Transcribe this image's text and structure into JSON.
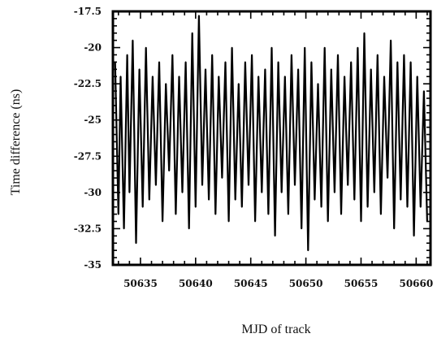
{
  "chart_data": {
    "type": "line",
    "title": "",
    "xlabel": "MJD of track",
    "ylabel": "Time difference (ns)",
    "xlim": [
      50632.5,
      50661.3
    ],
    "ylim": [
      -35,
      -17.5
    ],
    "x_ticks": [
      50635,
      50640,
      50645,
      50650,
      50655,
      50660
    ],
    "x_tick_labels": [
      "50635",
      "50640",
      "50645",
      "50650",
      "50655",
      "50660"
    ],
    "y_ticks": [
      -17.5,
      -20,
      -22.5,
      -25,
      -27.5,
      -30,
      -32.5,
      -35
    ],
    "y_tick_labels": [
      "-17.5",
      "-20",
      "-22.5",
      "-25",
      "-27.5",
      "-30",
      "-32.5",
      "-35"
    ],
    "grid": false,
    "series": [
      {
        "color": "#000000",
        "x": [
          50632.7,
          50633.0,
          50633.2,
          50633.5,
          50633.8,
          50634.0,
          50634.3,
          50634.6,
          50634.9,
          50635.2,
          50635.5,
          50635.8,
          50636.1,
          50636.4,
          50636.7,
          50637.0,
          50637.3,
          50637.6,
          50637.9,
          50638.2,
          50638.5,
          50638.8,
          50639.1,
          50639.4,
          50639.7,
          50640.0,
          50640.3,
          50640.6,
          50640.9,
          50641.2,
          50641.5,
          50641.8,
          50642.1,
          50642.4,
          50642.7,
          50643.0,
          50643.3,
          50643.6,
          50643.9,
          50644.2,
          50644.5,
          50644.8,
          50645.1,
          50645.4,
          50645.7,
          50646.0,
          50646.3,
          50646.6,
          50646.9,
          50647.2,
          50647.5,
          50647.8,
          50648.1,
          50648.4,
          50648.7,
          50649.0,
          50649.3,
          50649.6,
          50649.9,
          50650.2,
          50650.5,
          50650.8,
          50651.1,
          50651.4,
          50651.7,
          50652.0,
          50652.3,
          50652.6,
          50652.9,
          50653.2,
          50653.5,
          50653.8,
          50654.1,
          50654.4,
          50654.7,
          50655.0,
          50655.3,
          50655.6,
          50655.9,
          50656.2,
          50656.5,
          50656.8,
          50657.1,
          50657.4,
          50657.7,
          50658.0,
          50658.3,
          50658.6,
          50658.9,
          50659.2,
          50659.5,
          50659.8,
          50660.1,
          50660.4,
          50660.7,
          50661.0
        ],
        "values": [
          -21.0,
          -31.5,
          -22.0,
          -32.5,
          -20.5,
          -30.0,
          -19.5,
          -33.5,
          -21.5,
          -31.0,
          -20.0,
          -30.5,
          -22.0,
          -29.5,
          -21.0,
          -32.0,
          -22.5,
          -28.5,
          -20.5,
          -31.5,
          -22.0,
          -30.0,
          -21.0,
          -32.5,
          -19.0,
          -31.0,
          -17.8,
          -29.5,
          -21.5,
          -30.5,
          -20.5,
          -31.5,
          -22.0,
          -29.0,
          -21.0,
          -32.0,
          -20.0,
          -30.5,
          -22.5,
          -31.0,
          -21.0,
          -29.5,
          -20.5,
          -32.0,
          -22.0,
          -30.0,
          -21.5,
          -31.5,
          -20.0,
          -33.0,
          -21.0,
          -30.0,
          -22.0,
          -31.5,
          -20.5,
          -29.5,
          -21.5,
          -32.5,
          -20.0,
          -34.0,
          -21.0,
          -30.5,
          -22.5,
          -31.0,
          -20.0,
          -32.0,
          -21.5,
          -30.0,
          -20.5,
          -31.5,
          -22.0,
          -29.5,
          -21.0,
          -30.5,
          -20.0,
          -32.0,
          -19.0,
          -31.0,
          -21.5,
          -30.0,
          -20.5,
          -31.5,
          -22.0,
          -29.0,
          -19.5,
          -32.5,
          -21.0,
          -30.5,
          -20.5,
          -31.0,
          -21.0,
          -33.0,
          -22.0,
          -31.0,
          -23.0,
          -32.0
        ]
      }
    ]
  }
}
